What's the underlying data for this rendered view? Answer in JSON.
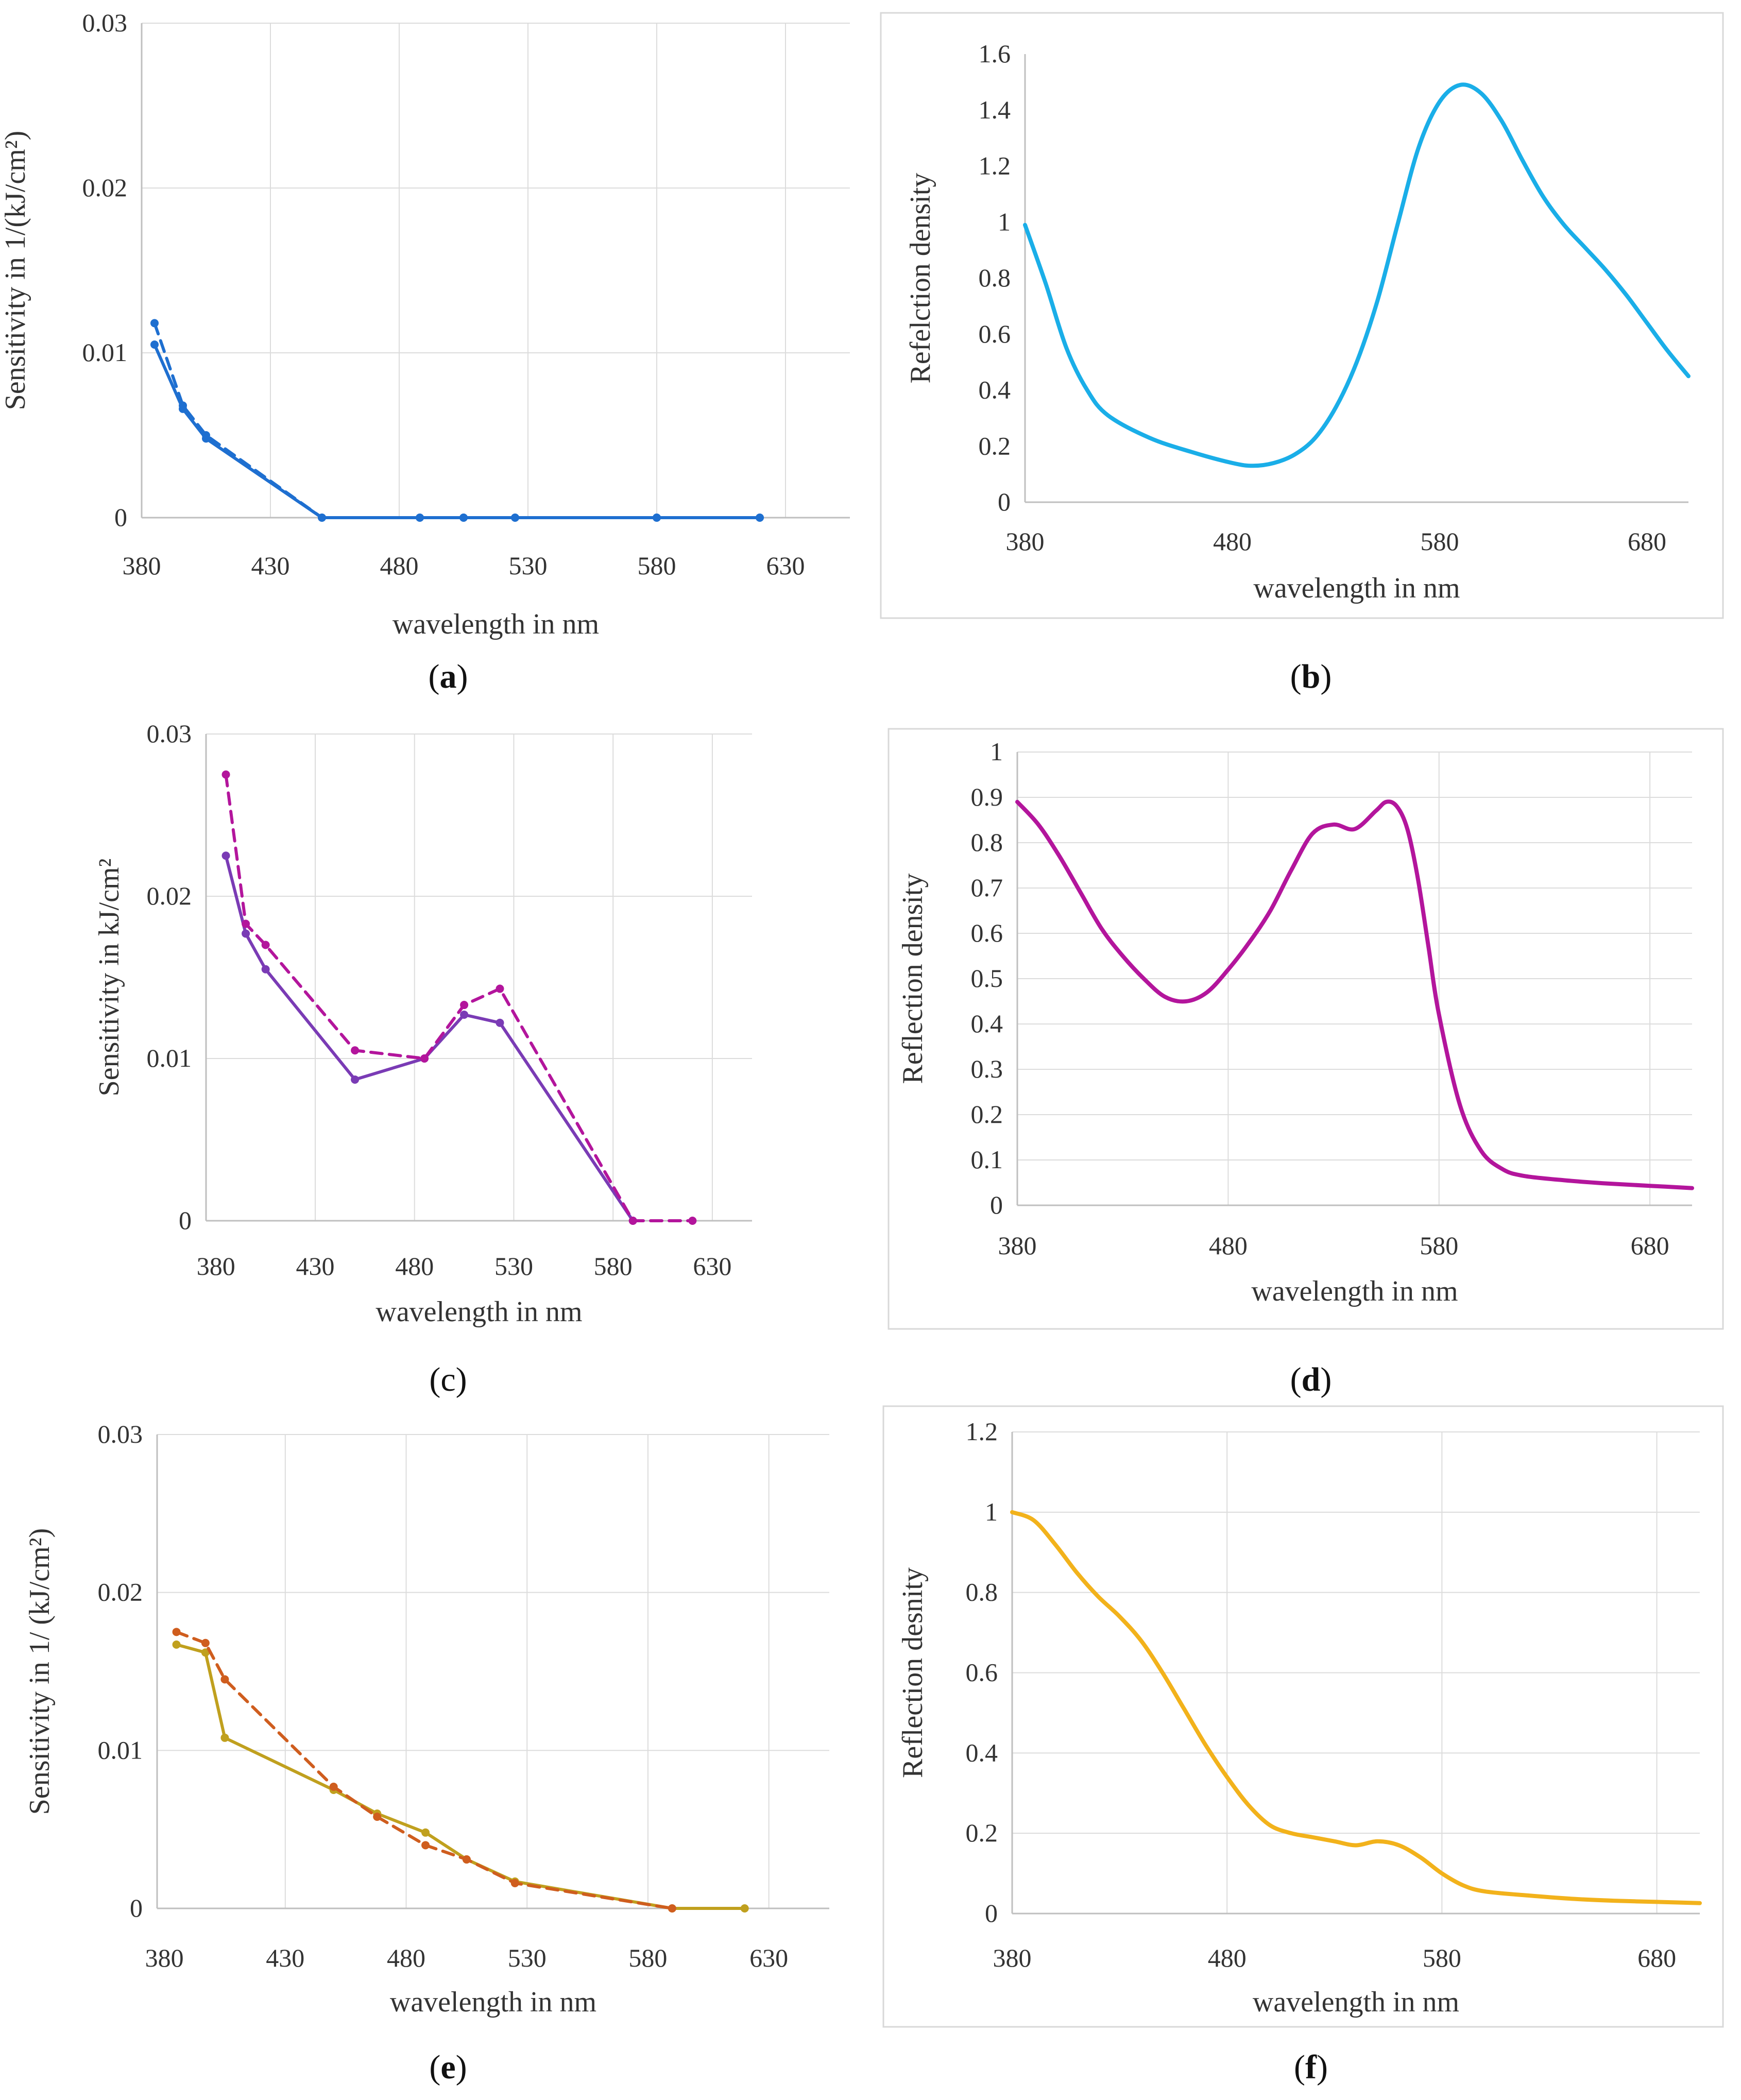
{
  "colors": {
    "blue": "#1e6fd0",
    "cyan": "#1aaee8",
    "violet": "#7a3bb5",
    "magenta": "#b3159c",
    "gold": "#c0a01e",
    "orange": "#cf5d1e",
    "amber": "#f2b21b",
    "grid": "#dcdcdc",
    "frame": "#d8d8d8"
  },
  "chart_data": [
    {
      "id": "a",
      "panel_label": "a",
      "label_bold": true,
      "type": "line",
      "xlabel": "wavelength in nm",
      "ylabel": "Sensitivity in 1/(kJ/cm²)",
      "xlim": [
        380,
        655
      ],
      "ylim": [
        0,
        0.03
      ],
      "xticks": [
        380,
        430,
        480,
        530,
        580,
        630
      ],
      "xtick_labels": [
        "380",
        "430",
        "480",
        "530",
        "580",
        "630"
      ],
      "yticks": [
        0,
        0.01,
        0.02,
        0.03
      ],
      "ytick_labels": [
        "0",
        "0.01",
        "0.02",
        "0.03"
      ],
      "grid": true,
      "frame": false,
      "series": [
        {
          "name": "solid",
          "color": "blue",
          "style": "solid",
          "markers": true,
          "x": [
            385,
            396,
            405,
            450,
            488,
            505,
            525,
            580,
            620
          ],
          "y": [
            0.0105,
            0.0066,
            0.0048,
            0,
            0,
            0,
            0,
            0,
            0
          ]
        },
        {
          "name": "dashed",
          "color": "blue",
          "style": "dashed",
          "markers": true,
          "x": [
            385,
            396,
            405,
            450,
            488,
            505,
            525,
            580,
            620
          ],
          "y": [
            0.0118,
            0.0068,
            0.005,
            0,
            0,
            0,
            0,
            0,
            0
          ]
        }
      ]
    },
    {
      "id": "b",
      "panel_label": "b",
      "label_bold": true,
      "type": "line",
      "xlabel": "wavelength in nm",
      "ylabel": "Refelction density",
      "xlim": [
        380,
        700
      ],
      "ylim": [
        0,
        1.6
      ],
      "xticks": [
        380,
        480,
        580,
        680
      ],
      "xtick_labels": [
        "380",
        "480",
        "580",
        "680"
      ],
      "yticks": [
        0,
        0.2,
        0.4,
        0.6,
        0.8,
        1.0,
        1.2,
        1.4,
        1.6
      ],
      "ytick_labels": [
        "0",
        "0.2",
        "0.4",
        "0.6",
        "0.8",
        "1",
        "1.2",
        "1.4",
        "1.6"
      ],
      "grid": false,
      "frame": true,
      "series": [
        {
          "name": "density",
          "color": "cyan",
          "style": "solid",
          "markers": false,
          "smooth": true,
          "x": [
            380,
            390,
            400,
            410,
            420,
            440,
            460,
            480,
            490,
            500,
            510,
            520,
            530,
            540,
            550,
            560,
            570,
            580,
            590,
            600,
            610,
            620,
            630,
            640,
            650,
            660,
            670,
            680,
            690,
            700
          ],
          "y": [
            0.99,
            0.78,
            0.55,
            0.4,
            0.31,
            0.23,
            0.18,
            0.14,
            0.13,
            0.14,
            0.17,
            0.23,
            0.34,
            0.5,
            0.72,
            1.0,
            1.27,
            1.43,
            1.49,
            1.46,
            1.36,
            1.22,
            1.09,
            0.99,
            0.91,
            0.83,
            0.74,
            0.64,
            0.54,
            0.45
          ]
        }
      ]
    },
    {
      "id": "c",
      "panel_label": "c",
      "label_bold": false,
      "type": "line",
      "xlabel": "wavelength in nm",
      "ylabel": "Sensitivity in kJ/cm²",
      "xlim": [
        375,
        650
      ],
      "ylim": [
        0,
        0.03
      ],
      "xticks": [
        380,
        430,
        480,
        530,
        580,
        630
      ],
      "xtick_labels": [
        "380",
        "430",
        "480",
        "530",
        "580",
        "630"
      ],
      "yticks": [
        0,
        0.01,
        0.02,
        0.03
      ],
      "ytick_labels": [
        "0",
        "0.01",
        "0.02",
        "0.03"
      ],
      "grid": true,
      "frame": false,
      "series": [
        {
          "name": "solid",
          "color": "violet",
          "style": "solid",
          "markers": true,
          "x": [
            385,
            395,
            405,
            450,
            485,
            505,
            523,
            590
          ],
          "y": [
            0.0225,
            0.0177,
            0.0155,
            0.0087,
            0.01,
            0.0127,
            0.0122,
            0
          ]
        },
        {
          "name": "dashed",
          "color": "magenta",
          "style": "dashed",
          "markers": true,
          "x": [
            385,
            395,
            405,
            450,
            485,
            505,
            523,
            590,
            620
          ],
          "y": [
            0.0275,
            0.0183,
            0.017,
            0.0105,
            0.01,
            0.0133,
            0.0143,
            0,
            0
          ]
        }
      ]
    },
    {
      "id": "d",
      "panel_label": "d",
      "label_bold": true,
      "type": "line",
      "xlabel": "wavelength in nm",
      "ylabel": "Reflection density",
      "xlim": [
        380,
        700
      ],
      "ylim": [
        0,
        1
      ],
      "xticks": [
        380,
        480,
        580,
        680
      ],
      "xtick_labels": [
        "380",
        "480",
        "580",
        "680"
      ],
      "yticks": [
        0,
        0.1,
        0.2,
        0.3,
        0.4,
        0.5,
        0.6,
        0.7,
        0.8,
        0.9,
        1
      ],
      "ytick_labels": [
        "0",
        "0.1",
        "0.2",
        "0.3",
        "0.4",
        "0.5",
        "0.6",
        "0.7",
        "0.8",
        "0.9",
        "1"
      ],
      "grid": true,
      "frame": true,
      "series": [
        {
          "name": "density",
          "color": "magenta",
          "style": "solid",
          "markers": false,
          "smooth": true,
          "x": [
            380,
            390,
            400,
            410,
            420,
            430,
            440,
            450,
            460,
            470,
            480,
            490,
            500,
            510,
            520,
            530,
            540,
            550,
            555,
            560,
            565,
            570,
            575,
            580,
            590,
            600,
            610,
            620,
            640,
            660,
            680,
            700
          ],
          "y": [
            0.89,
            0.84,
            0.77,
            0.69,
            0.61,
            0.55,
            0.5,
            0.46,
            0.45,
            0.47,
            0.52,
            0.58,
            0.65,
            0.74,
            0.82,
            0.84,
            0.83,
            0.87,
            0.89,
            0.88,
            0.83,
            0.72,
            0.57,
            0.42,
            0.22,
            0.12,
            0.08,
            0.065,
            0.055,
            0.048,
            0.043,
            0.038
          ]
        }
      ]
    },
    {
      "id": "e",
      "panel_label": "e",
      "label_bold": true,
      "type": "line",
      "xlabel": "wavelength in nm",
      "ylabel": "Sensitivity in 1/ (kJ/cm²)",
      "xlim": [
        377,
        655
      ],
      "ylim": [
        0,
        0.03
      ],
      "xticks": [
        380,
        430,
        480,
        530,
        580,
        630
      ],
      "xtick_labels": [
        "380",
        "430",
        "480",
        "530",
        "580",
        "630"
      ],
      "yticks": [
        0,
        0.01,
        0.02,
        0.03
      ],
      "ytick_labels": [
        "0",
        "0.01",
        "0.02",
        "0.03"
      ],
      "grid": true,
      "frame": false,
      "series": [
        {
          "name": "solid",
          "color": "gold",
          "style": "solid",
          "markers": true,
          "x": [
            385,
            397,
            405,
            450,
            468,
            488,
            505,
            525,
            590,
            620
          ],
          "y": [
            0.0167,
            0.0162,
            0.0108,
            0.0075,
            0.006,
            0.0048,
            0.0031,
            0.0017,
            0,
            0
          ]
        },
        {
          "name": "dashed",
          "color": "orange",
          "style": "dashed",
          "markers": true,
          "x": [
            385,
            397,
            405,
            450,
            468,
            488,
            505,
            525,
            590
          ],
          "y": [
            0.0175,
            0.0168,
            0.0145,
            0.0077,
            0.0058,
            0.004,
            0.0031,
            0.0016,
            0
          ]
        }
      ]
    },
    {
      "id": "f",
      "panel_label": "f",
      "label_bold": true,
      "type": "line",
      "xlabel": "wavelength in nm",
      "ylabel": "Reflection desnity",
      "xlim": [
        380,
        700
      ],
      "ylim": [
        0,
        1.2
      ],
      "xticks": [
        380,
        480,
        580,
        680
      ],
      "xtick_labels": [
        "380",
        "480",
        "580",
        "680"
      ],
      "yticks": [
        0,
        0.2,
        0.4,
        0.6,
        0.8,
        1.0,
        1.2
      ],
      "ytick_labels": [
        "0",
        "0.2",
        "0.4",
        "0.6",
        "0.8",
        "1",
        "1.2"
      ],
      "grid": true,
      "frame": true,
      "series": [
        {
          "name": "density",
          "color": "amber",
          "style": "solid",
          "markers": false,
          "smooth": true,
          "x": [
            380,
            390,
            400,
            410,
            420,
            430,
            440,
            450,
            460,
            470,
            480,
            490,
            500,
            510,
            520,
            530,
            540,
            550,
            560,
            570,
            580,
            590,
            600,
            620,
            640,
            660,
            680,
            700
          ],
          "y": [
            1.0,
            0.98,
            0.92,
            0.85,
            0.79,
            0.74,
            0.68,
            0.6,
            0.51,
            0.42,
            0.34,
            0.27,
            0.22,
            0.2,
            0.19,
            0.18,
            0.17,
            0.18,
            0.17,
            0.14,
            0.1,
            0.07,
            0.055,
            0.045,
            0.037,
            0.032,
            0.029,
            0.026
          ]
        }
      ]
    }
  ]
}
